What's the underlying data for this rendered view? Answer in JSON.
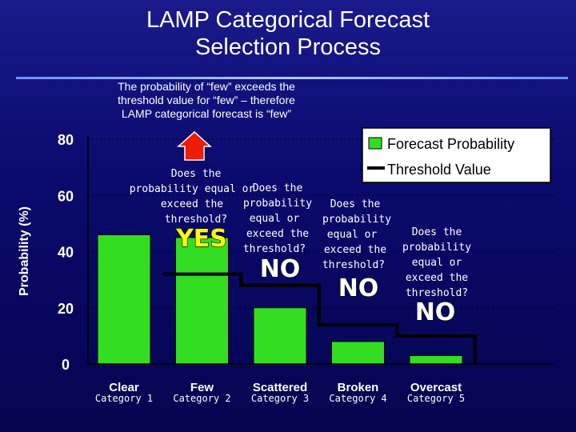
{
  "slide": {
    "title_line1": "LAMP Categorical Forecast",
    "title_line2": "Selection Process"
  },
  "note": {
    "lines": [
      "The probability of “few” exceeds the",
      "threshold value for “few” – therefore",
      "LAMP categorical forecast is “few”"
    ]
  },
  "chart_data": {
    "type": "bar",
    "categories": [
      "Clear",
      "Few",
      "Scattered",
      "Broken",
      "Overcast"
    ],
    "subcategories": [
      "Category 1",
      "Category 2",
      "Category 3",
      "Category 4",
      "Category 5"
    ],
    "series": [
      {
        "name": "Forecast Probability",
        "type": "bar",
        "values": [
          46,
          45,
          20,
          8,
          3
        ]
      },
      {
        "name": "Threshold Value",
        "type": "step",
        "values": [
          null,
          32,
          28,
          14,
          10
        ]
      }
    ],
    "ylabel": "Probability (%)",
    "ylim": [
      0,
      80
    ],
    "yticks": [
      "0",
      "20",
      "40",
      "60",
      "80"
    ],
    "grid": "dotted horizontal",
    "legend_position": "top-right",
    "questions": [
      {
        "category": "Few",
        "lines": [
          "Does the",
          "probability equal or",
          "exceed the",
          "threshold?"
        ],
        "answer": "YES"
      },
      {
        "category": "Scattered",
        "lines": [
          "Does the",
          "probability",
          "equal or",
          "exceed the",
          "threshold?"
        ],
        "answer": "NO"
      },
      {
        "category": "Broken",
        "lines": [
          "Does the",
          "probability",
          "equal or",
          "exceed the",
          "threshold?"
        ],
        "answer": "NO"
      },
      {
        "category": "Overcast",
        "lines": [
          "Does the",
          "probability",
          "equal or",
          "exceed the",
          "threshold?"
        ],
        "answer": "NO"
      }
    ]
  },
  "colors": {
    "background": "#0a0a6e",
    "bar": "#33dd22",
    "threshold": "#000000",
    "arrow": "#ee1c00",
    "yes": "#ffff00",
    "no": "#ffffff"
  }
}
